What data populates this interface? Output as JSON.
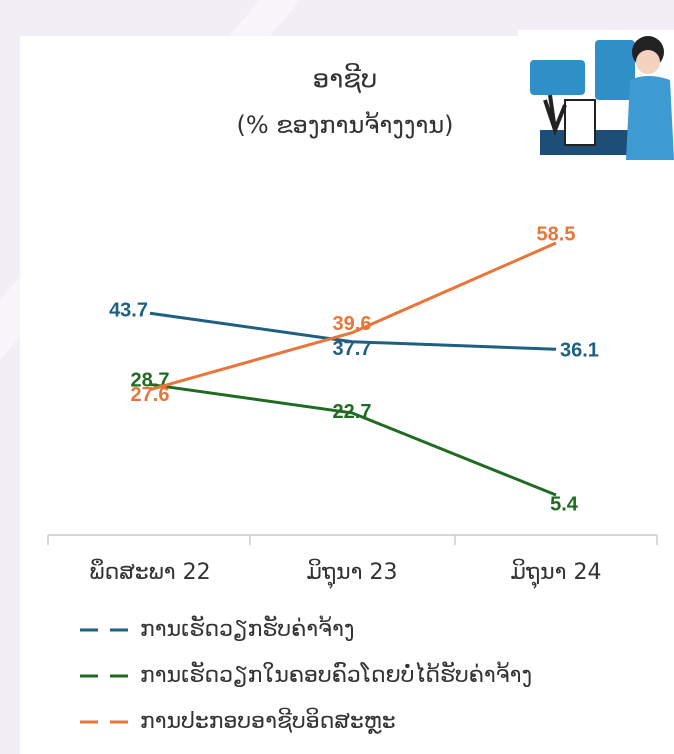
{
  "chart_data": {
    "type": "line",
    "title": "ອາຊີບ",
    "subtitle": "(% ຂອງການຈ້າງງານ)",
    "categories": [
      "ພຶດສະພາ 22",
      "ມິຖຸນາ 23",
      "ມິຖຸນາ 24"
    ],
    "series": [
      {
        "name": "ການເຮັດວຽກຮັບຄ່າຈ້າງ",
        "color": "#1f5f7f",
        "values": [
          43.7,
          37.7,
          36.1
        ]
      },
      {
        "name": "ການເຮັດວຽກໃນຄອບຄົວໂດຍບໍ່ໄດ້ຮັບຄ່າຈ້າງ",
        "color": "#1f6b22",
        "values": [
          28.7,
          22.7,
          5.4
        ]
      },
      {
        "name": "ການປະກອບອາຊີບອິດສະຫຼະ",
        "color": "#e8763a",
        "values": [
          27.6,
          39.6,
          58.5
        ]
      }
    ]
  }
}
